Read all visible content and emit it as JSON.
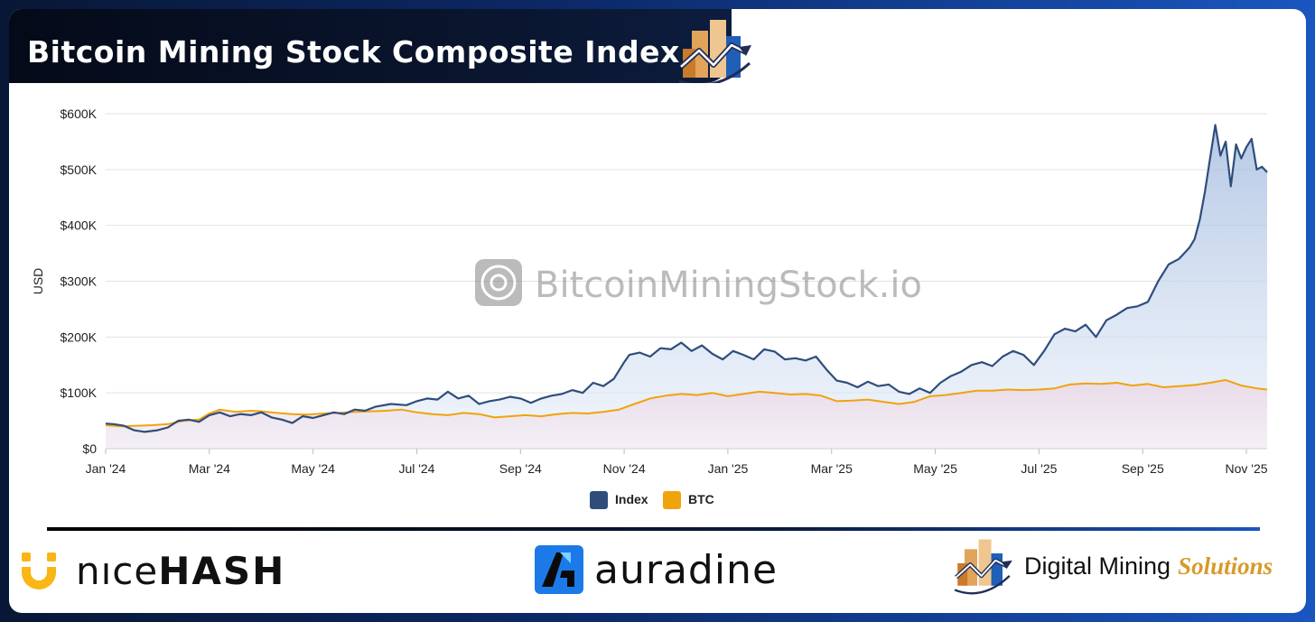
{
  "header": {
    "title": "Bitcoin Mining Stock Composite Index"
  },
  "watermark": {
    "text": "BitcoinMiningStock.io"
  },
  "sponsors": {
    "nicehash": {
      "part1": "nıce",
      "part2": "HASH"
    },
    "auradine": {
      "text": "auradine"
    },
    "digital_mining": {
      "part1": "Digital Mining",
      "part2": "Solutions"
    }
  },
  "colors": {
    "index": "#2f4d7a",
    "btc": "#f0a30a",
    "grid": "#e2e2e2",
    "dms_orange": "#d89a2c",
    "dms_blue": "#1f5fb8"
  },
  "chart_data": {
    "type": "area",
    "title": "Bitcoin Mining Stock Composite Index",
    "xlabel": "",
    "ylabel": "USD",
    "xlim": [
      0,
      22.4
    ],
    "ylim": [
      0,
      600000
    ],
    "x_ticks": [
      0,
      2,
      4,
      6,
      8,
      10,
      12,
      14,
      16,
      18,
      20,
      22
    ],
    "x_tick_labels": [
      "Jan '24",
      "Mar '24",
      "May '24",
      "Jul '24",
      "Sep '24",
      "Nov '24",
      "Jan '25",
      "Mar '25",
      "May '25",
      "Jul '25",
      "Sep '25",
      "Nov '25"
    ],
    "y_ticks": [
      0,
      100000,
      200000,
      300000,
      400000,
      500000,
      600000
    ],
    "y_tick_labels": [
      "$0",
      "$100K",
      "$200K",
      "$300K",
      "$400K",
      "$500K",
      "$600K"
    ],
    "grid": true,
    "legend": "bottom-center",
    "x_note": "x values are months elapsed since Jan 1 2024",
    "series": [
      {
        "name": "Index",
        "x": [
          0,
          0.15,
          0.35,
          0.55,
          0.75,
          1.0,
          1.2,
          1.4,
          1.6,
          1.8,
          2.0,
          2.2,
          2.4,
          2.6,
          2.8,
          3.0,
          3.2,
          3.4,
          3.6,
          3.8,
          4.0,
          4.2,
          4.4,
          4.6,
          4.8,
          5.0,
          5.2,
          5.5,
          5.8,
          6.0,
          6.2,
          6.4,
          6.6,
          6.8,
          7.0,
          7.2,
          7.4,
          7.6,
          7.8,
          8.0,
          8.2,
          8.4,
          8.6,
          8.8,
          9.0,
          9.2,
          9.4,
          9.6,
          9.8,
          10.0,
          10.1,
          10.3,
          10.5,
          10.7,
          10.9,
          11.1,
          11.3,
          11.5,
          11.7,
          11.9,
          12.1,
          12.3,
          12.5,
          12.7,
          12.9,
          13.1,
          13.3,
          13.5,
          13.7,
          13.9,
          14.1,
          14.3,
          14.5,
          14.7,
          14.9,
          15.1,
          15.3,
          15.5,
          15.7,
          15.9,
          16.1,
          16.3,
          16.5,
          16.7,
          16.9,
          17.1,
          17.3,
          17.5,
          17.7,
          17.9,
          18.1,
          18.3,
          18.5,
          18.7,
          18.9,
          19.1,
          19.3,
          19.5,
          19.7,
          19.9,
          20.1,
          20.3,
          20.5,
          20.7,
          20.9,
          21.0,
          21.1,
          21.2,
          21.3,
          21.4,
          21.5,
          21.6,
          21.7,
          21.8,
          21.9,
          22.0,
          22.1,
          22.2,
          22.3,
          22.4
        ],
        "y": [
          45000,
          44000,
          41000,
          33000,
          30000,
          33000,
          38000,
          50000,
          52000,
          48000,
          60000,
          65000,
          58000,
          62000,
          60000,
          65000,
          56000,
          52000,
          46000,
          58000,
          55000,
          60000,
          65000,
          62000,
          70000,
          68000,
          75000,
          80000,
          78000,
          85000,
          90000,
          88000,
          102000,
          90000,
          95000,
          80000,
          85000,
          88000,
          93000,
          90000,
          82000,
          90000,
          95000,
          98000,
          105000,
          100000,
          118000,
          112000,
          125000,
          155000,
          168000,
          172000,
          165000,
          180000,
          178000,
          190000,
          175000,
          185000,
          170000,
          160000,
          175000,
          168000,
          160000,
          178000,
          174000,
          160000,
          162000,
          158000,
          165000,
          142000,
          122000,
          118000,
          110000,
          120000,
          112000,
          115000,
          102000,
          98000,
          108000,
          100000,
          118000,
          130000,
          138000,
          150000,
          155000,
          148000,
          165000,
          175000,
          168000,
          150000,
          175000,
          205000,
          215000,
          210000,
          222000,
          200000,
          230000,
          240000,
          252000,
          255000,
          263000,
          300000,
          330000,
          340000,
          360000,
          375000,
          410000,
          460000,
          520000,
          580000,
          525000,
          550000,
          470000,
          545000,
          520000,
          540000,
          555000,
          500000,
          505000,
          495000
        ]
      },
      {
        "name": "BTC",
        "x": [
          0,
          0.3,
          0.6,
          0.9,
          1.2,
          1.5,
          1.8,
          2.0,
          2.2,
          2.5,
          2.8,
          3.0,
          3.3,
          3.6,
          3.9,
          4.2,
          4.5,
          4.8,
          5.1,
          5.4,
          5.7,
          6.0,
          6.3,
          6.6,
          6.9,
          7.2,
          7.5,
          7.8,
          8.1,
          8.4,
          8.7,
          9.0,
          9.3,
          9.6,
          9.9,
          10.2,
          10.5,
          10.8,
          11.1,
          11.4,
          11.7,
          12.0,
          12.3,
          12.6,
          12.9,
          13.2,
          13.5,
          13.8,
          14.1,
          14.4,
          14.7,
          15.0,
          15.3,
          15.6,
          15.9,
          16.2,
          16.5,
          16.8,
          17.1,
          17.4,
          17.7,
          18.0,
          18.3,
          18.6,
          18.9,
          19.2,
          19.5,
          19.8,
          20.1,
          20.4,
          20.7,
          21.0,
          21.3,
          21.6,
          21.9,
          22.2,
          22.4
        ],
        "y": [
          42000,
          40000,
          41000,
          42000,
          44000,
          50000,
          52000,
          63000,
          70000,
          66000,
          68000,
          67000,
          64000,
          62000,
          61000,
          63000,
          64000,
          66000,
          67000,
          68000,
          70000,
          65000,
          62000,
          60000,
          64000,
          62000,
          56000,
          58000,
          60000,
          58000,
          62000,
          64000,
          63000,
          66000,
          70000,
          80000,
          90000,
          95000,
          98000,
          96000,
          100000,
          94000,
          98000,
          102000,
          100000,
          97000,
          98000,
          95000,
          85000,
          86000,
          88000,
          84000,
          80000,
          84000,
          94000,
          96000,
          100000,
          104000,
          104000,
          106000,
          105000,
          106000,
          108000,
          115000,
          117000,
          116000,
          118000,
          113000,
          116000,
          110000,
          112000,
          114000,
          118000,
          123000,
          113000,
          108000,
          106000
        ]
      }
    ]
  }
}
